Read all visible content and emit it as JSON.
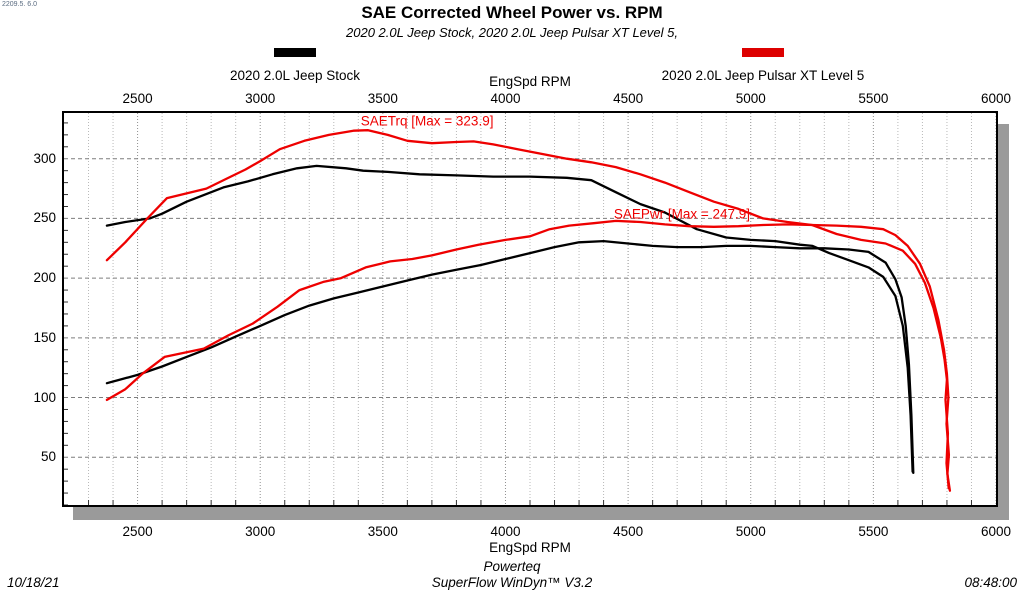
{
  "meta": {
    "version_tag": "2209.5. 6.0"
  },
  "header": {
    "title": "SAE Corrected Wheel Power vs. RPM",
    "subtitle": "2020 2.0L Jeep Stock, 2020 2.0L Jeep Pulsar XT Level 5,"
  },
  "legend": [
    {
      "label": "2020 2.0L Jeep Stock",
      "color": "#000000"
    },
    {
      "label": "2020 2.0L Jeep Pulsar XT Level 5",
      "color": "#dd0000"
    }
  ],
  "footer": {
    "brand": "Powerteq",
    "software": "SuperFlow WinDyn™ V3.2",
    "date": "10/18/21",
    "time": "08:48:00"
  },
  "chart_data": {
    "type": "line",
    "title": "SAE Corrected Wheel Power vs. RPM",
    "xlabel": "EngSpd RPM",
    "xlabel_top": "EngSpd RPM",
    "ylabel": "",
    "xlim": [
      2200,
      6000
    ],
    "ylim": [
      10,
      338.3
    ],
    "x_ticks": [
      2500,
      3000,
      3500,
      4000,
      4500,
      5000,
      5500,
      6000
    ],
    "y_ticks": [
      50,
      100,
      150,
      200,
      250,
      300
    ],
    "x_minor_step": 100,
    "y_minor_step": 10,
    "grid": "on",
    "legend_position": "top",
    "colors": {
      "grid_minor_v": "#b8b8b8",
      "grid_major_v": "#8f8f8f",
      "grid_major_h": "#7d7d7d",
      "stock": "#000000",
      "pulsar": "#ee0000",
      "annotation": "#ee0000"
    },
    "annotations": [
      {
        "text": "SAETrq [Max = 323.9]",
        "rpm": 3410,
        "value": 331.5,
        "color": "#ee0000"
      },
      {
        "text": "SAEPwr [Max = 247.9]",
        "rpm": 4442,
        "value": 253.7,
        "color": "#ee0000"
      }
    ],
    "max_values": {
      "saetrq_max": 323.9,
      "saepwr_max": 247.9
    },
    "series": [
      {
        "key": "stock-torque",
        "name": "2020 2.0L Jeep Stock SAETrq",
        "color": "#000000",
        "points": [
          [
            2375,
            244
          ],
          [
            2450,
            247
          ],
          [
            2550,
            250
          ],
          [
            2600,
            254
          ],
          [
            2700,
            264
          ],
          [
            2750,
            268
          ],
          [
            2850,
            276
          ],
          [
            2950,
            281
          ],
          [
            3050,
            287
          ],
          [
            3150,
            292
          ],
          [
            3230,
            294
          ],
          [
            3350,
            292
          ],
          [
            3420,
            290
          ],
          [
            3520,
            289
          ],
          [
            3650,
            287
          ],
          [
            3800,
            286
          ],
          [
            3950,
            285
          ],
          [
            4100,
            285
          ],
          [
            4250,
            284
          ],
          [
            4350,
            282
          ],
          [
            4450,
            272
          ],
          [
            4550,
            262
          ],
          [
            4650,
            255
          ],
          [
            4780,
            241
          ],
          [
            4900,
            234
          ],
          [
            5000,
            232
          ],
          [
            5100,
            231
          ],
          [
            5200,
            228
          ],
          [
            5252,
            227
          ],
          [
            5320,
            221
          ],
          [
            5400,
            215
          ],
          [
            5480,
            209
          ],
          [
            5540,
            201
          ],
          [
            5590,
            185
          ],
          [
            5620,
            160
          ],
          [
            5640,
            125
          ],
          [
            5652,
            85
          ],
          [
            5660,
            38
          ]
        ]
      },
      {
        "key": "stock-power",
        "name": "2020 2.0L Jeep Stock SAEPwr",
        "color": "#000000",
        "points": [
          [
            2375,
            112
          ],
          [
            2500,
            119
          ],
          [
            2600,
            126
          ],
          [
            2700,
            134
          ],
          [
            2800,
            142
          ],
          [
            2900,
            151
          ],
          [
            3000,
            160
          ],
          [
            3100,
            169
          ],
          [
            3200,
            177
          ],
          [
            3300,
            183
          ],
          [
            3400,
            188
          ],
          [
            3500,
            193
          ],
          [
            3600,
            198
          ],
          [
            3700,
            203
          ],
          [
            3800,
            207
          ],
          [
            3900,
            211
          ],
          [
            4000,
            216
          ],
          [
            4100,
            221
          ],
          [
            4200,
            226
          ],
          [
            4300,
            230
          ],
          [
            4400,
            231
          ],
          [
            4500,
            229
          ],
          [
            4600,
            227
          ],
          [
            4700,
            226
          ],
          [
            4800,
            226
          ],
          [
            4900,
            227
          ],
          [
            5000,
            227
          ],
          [
            5100,
            226
          ],
          [
            5200,
            225
          ],
          [
            5300,
            225
          ],
          [
            5400,
            224
          ],
          [
            5480,
            222
          ],
          [
            5550,
            213
          ],
          [
            5590,
            199
          ],
          [
            5615,
            184
          ],
          [
            5632,
            160
          ],
          [
            5645,
            128
          ],
          [
            5655,
            85
          ],
          [
            5663,
            37
          ]
        ]
      },
      {
        "key": "pulsar-torque",
        "name": "2020 2.0L Jeep Pulsar XT Level 5 SAETrq",
        "color": "#ee0000",
        "points": [
          [
            2375,
            215
          ],
          [
            2450,
            230
          ],
          [
            2540,
            250
          ],
          [
            2620,
            267
          ],
          [
            2700,
            271
          ],
          [
            2780,
            275
          ],
          [
            2880,
            285
          ],
          [
            2940,
            291
          ],
          [
            3000,
            298
          ],
          [
            3080,
            308
          ],
          [
            3180,
            315
          ],
          [
            3280,
            320
          ],
          [
            3380,
            323.5
          ],
          [
            3440,
            323.9
          ],
          [
            3520,
            320
          ],
          [
            3600,
            315
          ],
          [
            3700,
            313
          ],
          [
            3800,
            314
          ],
          [
            3870,
            314.5
          ],
          [
            3950,
            312
          ],
          [
            4050,
            308
          ],
          [
            4150,
            304
          ],
          [
            4250,
            300
          ],
          [
            4350,
            297
          ],
          [
            4450,
            293
          ],
          [
            4550,
            287
          ],
          [
            4650,
            280
          ],
          [
            4750,
            272
          ],
          [
            4850,
            264
          ],
          [
            4950,
            258
          ],
          [
            5050,
            250
          ],
          [
            5150,
            247
          ],
          [
            5250,
            244.5
          ],
          [
            5350,
            237
          ],
          [
            5450,
            232
          ],
          [
            5550,
            229
          ],
          [
            5620,
            223
          ],
          [
            5670,
            212
          ],
          [
            5710,
            196
          ],
          [
            5745,
            175
          ],
          [
            5775,
            150
          ],
          [
            5790,
            132
          ],
          [
            5800,
            115
          ],
          [
            5794,
            98
          ],
          [
            5804,
            70
          ],
          [
            5798,
            45
          ],
          [
            5807,
            24
          ]
        ]
      },
      {
        "key": "pulsar-power",
        "name": "2020 2.0L Jeep Pulsar XT Level 5 SAEPwr",
        "color": "#ee0000",
        "points": [
          [
            2375,
            98
          ],
          [
            2450,
            107
          ],
          [
            2520,
            120
          ],
          [
            2610,
            134
          ],
          [
            2700,
            138
          ],
          [
            2770,
            141
          ],
          [
            2870,
            152
          ],
          [
            2970,
            162
          ],
          [
            3070,
            176
          ],
          [
            3160,
            190
          ],
          [
            3260,
            197
          ],
          [
            3330,
            200
          ],
          [
            3430,
            209
          ],
          [
            3530,
            214
          ],
          [
            3620,
            216
          ],
          [
            3700,
            219
          ],
          [
            3800,
            224
          ],
          [
            3890,
            228
          ],
          [
            4000,
            232
          ],
          [
            4100,
            235
          ],
          [
            4180,
            241
          ],
          [
            4260,
            244
          ],
          [
            4360,
            246
          ],
          [
            4450,
            247.9
          ],
          [
            4550,
            247
          ],
          [
            4650,
            245
          ],
          [
            4750,
            243.5
          ],
          [
            4850,
            243
          ],
          [
            4950,
            243.5
          ],
          [
            5050,
            244.5
          ],
          [
            5150,
            245
          ],
          [
            5250,
            244.5
          ],
          [
            5350,
            244
          ],
          [
            5450,
            243
          ],
          [
            5540,
            241
          ],
          [
            5590,
            236
          ],
          [
            5640,
            227
          ],
          [
            5690,
            212
          ],
          [
            5730,
            193
          ],
          [
            5765,
            165
          ],
          [
            5788,
            140
          ],
          [
            5800,
            120
          ],
          [
            5806,
            100
          ],
          [
            5798,
            78
          ],
          [
            5808,
            52
          ],
          [
            5802,
            36
          ],
          [
            5812,
            22
          ]
        ]
      }
    ]
  }
}
